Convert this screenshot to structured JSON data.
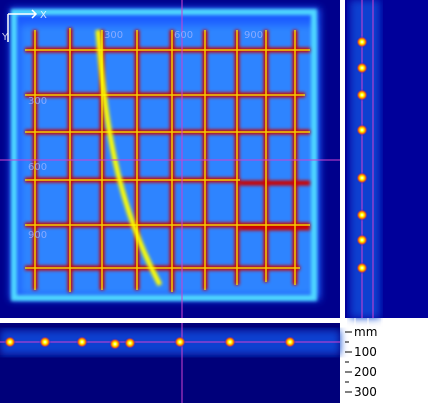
{
  "axis_indicator": {
    "x": "X",
    "y": "Y"
  },
  "top_scale": [
    "300",
    "600",
    "900"
  ],
  "left_scale": [
    "300",
    "600",
    "900"
  ],
  "depth_scale": {
    "unit": "mm",
    "labels": [
      "100",
      "200",
      "300"
    ]
  }
}
